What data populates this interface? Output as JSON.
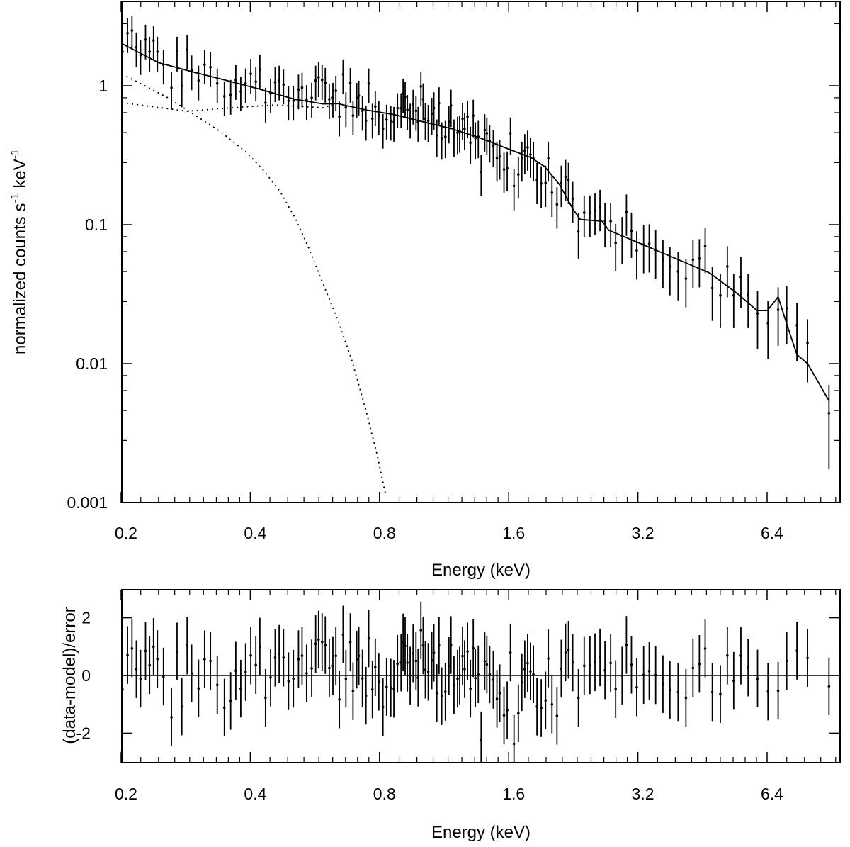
{
  "chart_data": [
    {
      "type": "scatter",
      "panel": "spectrum",
      "xscale": "log",
      "yscale": "log",
      "xlabel": "Energy (keV)",
      "ylabel": {
        "main": "normalized counts s",
        "sup1": "-1",
        "mid": " keV",
        "sup2": "-1"
      },
      "xlim": [
        0.2,
        9.5
      ],
      "ylim": [
        0.001,
        4.0
      ],
      "xticks": [
        0.2,
        0.4,
        0.8,
        1.6,
        3.2,
        6.4
      ],
      "xtick_labels": [
        "0.2",
        "0.4",
        "0.8",
        "1.6",
        "3.2",
        "6.4"
      ],
      "yticks": [
        0.001,
        0.01,
        0.1,
        1
      ],
      "ytick_labels": [
        "0.001",
        "0.01",
        "0.1",
        "1"
      ],
      "colors": {
        "data": "#000000",
        "model": "#000000",
        "components": "#000000"
      },
      "data_columns": [
        "energy_keV",
        "value",
        "relative_error"
      ],
      "data": [
        [
          0.2015,
          1.76,
          0.28
        ],
        [
          0.207,
          2.39,
          0.28
        ],
        [
          0.212,
          2.5,
          0.28
        ],
        [
          0.217,
          1.89,
          0.28
        ],
        [
          0.222,
          1.66,
          0.28
        ],
        [
          0.228,
          2.15,
          0.28
        ],
        [
          0.233,
          1.76,
          0.28
        ],
        [
          0.238,
          2.12,
          0.28
        ],
        [
          0.243,
          1.76,
          0.28
        ],
        [
          0.251,
          1.42,
          0.28
        ],
        [
          0.262,
          0.966,
          0.3
        ],
        [
          0.27,
          1.76,
          0.28
        ],
        [
          0.277,
          1.0,
          0.3
        ],
        [
          0.285,
          1.82,
          0.28
        ],
        [
          0.292,
          1.29,
          0.28
        ],
        [
          0.303,
          1.09,
          0.28
        ],
        [
          0.313,
          1.42,
          0.28
        ],
        [
          0.323,
          1.36,
          0.28
        ],
        [
          0.335,
          1.04,
          0.28
        ],
        [
          0.348,
          0.84,
          0.28
        ],
        [
          0.36,
          0.86,
          0.28
        ],
        [
          0.37,
          1.1,
          0.28
        ],
        [
          0.38,
          0.91,
          0.28
        ],
        [
          0.39,
          1.04,
          0.28
        ],
        [
          0.401,
          1.22,
          0.28
        ],
        [
          0.412,
          1.07,
          0.28
        ],
        [
          0.421,
          1.31,
          0.28
        ],
        [
          0.434,
          0.755,
          0.28
        ],
        [
          0.446,
          0.88,
          0.28
        ],
        [
          0.457,
          1.06,
          0.28
        ],
        [
          0.467,
          1.09,
          0.28
        ],
        [
          0.478,
          1.02,
          0.28
        ],
        [
          0.491,
          0.78,
          0.28
        ],
        [
          0.504,
          0.78,
          0.28
        ],
        [
          0.518,
          0.94,
          0.28
        ],
        [
          0.528,
          0.97,
          0.28
        ],
        [
          0.541,
          0.79,
          0.28
        ],
        [
          0.556,
          0.82,
          0.28
        ],
        [
          0.568,
          1.09,
          0.28
        ],
        [
          0.577,
          1.15,
          0.28
        ],
        [
          0.588,
          1.1,
          0.28
        ],
        [
          0.598,
          1.05,
          0.28
        ],
        [
          0.611,
          0.8,
          0.28
        ],
        [
          0.623,
          0.82,
          0.28
        ],
        [
          0.633,
          0.92,
          0.28
        ],
        [
          0.645,
          0.6,
          0.28
        ],
        [
          0.658,
          1.21,
          0.28
        ],
        [
          0.668,
          0.7,
          0.28
        ],
        [
          0.684,
          1.05,
          0.28
        ],
        [
          0.694,
          0.61,
          0.28
        ],
        [
          0.708,
          0.82,
          0.28
        ],
        [
          0.716,
          0.85,
          0.28
        ],
        [
          0.73,
          0.66,
          0.28
        ],
        [
          0.744,
          0.56,
          0.28
        ],
        [
          0.755,
          1.04,
          0.28
        ],
        [
          0.77,
          0.58,
          0.28
        ],
        [
          0.782,
          0.71,
          0.28
        ],
        [
          0.797,
          0.61,
          0.28
        ],
        [
          0.815,
          0.49,
          0.28
        ],
        [
          0.831,
          0.57,
          0.28
        ],
        [
          0.85,
          0.56,
          0.28
        ],
        [
          0.864,
          0.55,
          0.28
        ],
        [
          0.881,
          0.69,
          0.28
        ],
        [
          0.898,
          0.69,
          0.28
        ],
        [
          0.908,
          0.88,
          0.28
        ],
        [
          0.918,
          0.83,
          0.28
        ],
        [
          0.929,
          0.67,
          0.28
        ],
        [
          0.943,
          0.58,
          0.28
        ],
        [
          0.958,
          0.73,
          0.28
        ],
        [
          0.973,
          0.66,
          0.28
        ],
        [
          0.984,
          0.55,
          0.28
        ],
        [
          0.999,
          0.99,
          0.28
        ],
        [
          1.011,
          0.8,
          0.3
        ],
        [
          1.023,
          0.58,
          0.3
        ],
        [
          1.039,
          0.56,
          0.3
        ],
        [
          1.059,
          0.63,
          0.3
        ],
        [
          1.071,
          0.69,
          0.3
        ],
        [
          1.088,
          0.44,
          0.3
        ],
        [
          1.101,
          0.75,
          0.3
        ],
        [
          1.117,
          0.42,
          0.3
        ],
        [
          1.139,
          0.43,
          0.3
        ],
        [
          1.161,
          0.55,
          0.3
        ],
        [
          1.174,
          0.72,
          0.3
        ],
        [
          1.193,
          0.44,
          0.3
        ],
        [
          1.216,
          0.46,
          0.3
        ],
        [
          1.23,
          0.47,
          0.3
        ],
        [
          1.249,
          0.58,
          0.3
        ],
        [
          1.263,
          0.49,
          0.3
        ],
        [
          1.283,
          0.6,
          0.3
        ],
        [
          1.303,
          0.39,
          0.3
        ],
        [
          1.323,
          0.61,
          0.3
        ],
        [
          1.338,
          0.42,
          0.3
        ],
        [
          1.359,
          0.43,
          0.3
        ],
        [
          1.38,
          0.24,
          0.33
        ],
        [
          1.407,
          0.48,
          0.3
        ],
        [
          1.423,
          0.455,
          0.3
        ],
        [
          1.445,
          0.4,
          0.3
        ],
        [
          1.473,
          0.37,
          0.3
        ],
        [
          1.502,
          0.3,
          0.32
        ],
        [
          1.525,
          0.31,
          0.32
        ],
        [
          1.56,
          0.25,
          0.32
        ],
        [
          1.587,
          0.255,
          0.32
        ],
        [
          1.615,
          0.455,
          0.3
        ],
        [
          1.646,
          0.19,
          0.33
        ],
        [
          1.685,
          0.23,
          0.33
        ],
        [
          1.717,
          0.3,
          0.32
        ],
        [
          1.744,
          0.34,
          0.32
        ],
        [
          1.771,
          0.36,
          0.32
        ],
        [
          1.798,
          0.32,
          0.32
        ],
        [
          1.827,
          0.3,
          0.32
        ],
        [
          1.862,
          0.21,
          0.33
        ],
        [
          1.905,
          0.198,
          0.33
        ],
        [
          1.95,
          0.2,
          0.33
        ],
        [
          1.979,
          0.3,
          0.32
        ],
        [
          2.018,
          0.17,
          0.33
        ],
        [
          2.073,
          0.14,
          0.33
        ],
        [
          2.121,
          0.2,
          0.33
        ],
        [
          2.171,
          0.22,
          0.33
        ],
        [
          2.205,
          0.21,
          0.33
        ],
        [
          2.256,
          0.153,
          0.33
        ],
        [
          2.326,
          0.089,
          0.36
        ],
        [
          2.399,
          0.122,
          0.33
        ],
        [
          2.474,
          0.122,
          0.33
        ],
        [
          2.542,
          0.126,
          0.33
        ],
        [
          2.611,
          0.134,
          0.33
        ],
        [
          2.682,
          0.106,
          0.35
        ],
        [
          2.765,
          0.106,
          0.35
        ],
        [
          2.84,
          0.074,
          0.37
        ],
        [
          2.94,
          0.083,
          0.37
        ],
        [
          3.009,
          0.124,
          0.33
        ],
        [
          3.091,
          0.09,
          0.36
        ],
        [
          3.18,
          0.065,
          0.38
        ],
        [
          3.3,
          0.072,
          0.38
        ],
        [
          3.4,
          0.073,
          0.38
        ],
        [
          3.52,
          0.066,
          0.38
        ],
        [
          3.66,
          0.056,
          0.38
        ],
        [
          3.8,
          0.05,
          0.38
        ],
        [
          3.97,
          0.046,
          0.38
        ],
        [
          4.14,
          0.041,
          0.38
        ],
        [
          4.3,
          0.056,
          0.38
        ],
        [
          4.45,
          0.057,
          0.38
        ],
        [
          4.59,
          0.07,
          0.36
        ],
        [
          4.77,
          0.035,
          0.42
        ],
        [
          4.98,
          0.031,
          0.42
        ],
        [
          5.17,
          0.05,
          0.4
        ],
        [
          5.35,
          0.031,
          0.42
        ],
        [
          5.56,
          0.042,
          0.4
        ],
        [
          5.78,
          0.031,
          0.42
        ],
        [
          6.08,
          0.023,
          0.45
        ],
        [
          6.43,
          0.0195,
          0.45
        ],
        [
          6.79,
          0.0244,
          0.45
        ],
        [
          7.11,
          0.025,
          0.45
        ],
        [
          7.51,
          0.0189,
          0.45
        ],
        [
          7.95,
          0.0141,
          0.48
        ],
        [
          8.92,
          0.0044,
          0.6
        ]
      ],
      "series": [
        {
          "name": "total model",
          "style": "solid",
          "points": [
            [
              0.2015,
              2.0
            ],
            [
              0.244,
              1.47
            ],
            [
              0.296,
              1.25
            ],
            [
              0.345,
              1.11
            ],
            [
              0.418,
              0.95
            ],
            [
              0.507,
              0.8
            ],
            [
              0.591,
              0.74
            ],
            [
              0.638,
              0.745
            ],
            [
              0.744,
              0.67
            ],
            [
              0.867,
              0.62
            ],
            [
              1.011,
              0.55
            ],
            [
              1.18,
              0.49
            ],
            [
              1.375,
              0.42
            ],
            [
              1.6,
              0.35
            ],
            [
              1.8,
              0.305
            ],
            [
              1.94,
              0.262
            ],
            [
              2.1,
              0.195
            ],
            [
              2.26,
              0.129
            ],
            [
              2.35,
              0.109
            ],
            [
              2.64,
              0.106
            ],
            [
              2.74,
              0.091
            ],
            [
              3.2,
              0.0745
            ],
            [
              4.03,
              0.055
            ],
            [
              4.7,
              0.045
            ],
            [
              5.48,
              0.0316
            ],
            [
              6.06,
              0.0241
            ],
            [
              6.41,
              0.0241
            ],
            [
              6.79,
              0.0302
            ],
            [
              7.11,
              0.0193
            ],
            [
              7.51,
              0.0116
            ],
            [
              7.95,
              0.01
            ],
            [
              8.92,
              0.0054
            ]
          ]
        },
        {
          "name": "soft component",
          "style": "dotted",
          "points": [
            [
              0.2015,
              1.21
            ],
            [
              0.257,
              0.82
            ],
            [
              0.288,
              0.655
            ],
            [
              0.34,
              0.47
            ],
            [
              0.392,
              0.331
            ],
            [
              0.43,
              0.245
            ],
            [
              0.469,
              0.174
            ],
            [
              0.51,
              0.11
            ],
            [
              0.547,
              0.068
            ],
            [
              0.59,
              0.038
            ],
            [
              0.638,
              0.021
            ],
            [
              0.69,
              0.0105
            ],
            [
              0.744,
              0.0046
            ],
            [
              0.79,
              0.0022
            ],
            [
              0.828,
              0.00111
            ]
          ]
        },
        {
          "name": "hard component",
          "style": "dotted",
          "points": [
            [
              0.2015,
              0.755
            ],
            [
              0.285,
              0.655
            ],
            [
              0.345,
              0.687
            ],
            [
              0.457,
              0.728
            ],
            [
              0.591,
              0.695
            ],
            [
              0.638,
              0.745
            ]
          ]
        }
      ]
    },
    {
      "type": "scatter",
      "panel": "residuals",
      "xscale": "log",
      "yscale": "linear",
      "xlabel": "Energy (keV)",
      "ylabel": "(data-model)/error",
      "xlim": [
        0.2,
        9.5
      ],
      "ylim": [
        -3,
        3
      ],
      "xticks": [
        0.2,
        0.4,
        0.8,
        1.6,
        3.2,
        6.4
      ],
      "xtick_labels": [
        "0.2",
        "0.4",
        "0.8",
        "1.6",
        "3.2",
        "6.4"
      ],
      "yticks": [
        -2,
        0,
        2
      ],
      "ytick_labels": [
        "-2",
        "0",
        "2"
      ],
      "reference_line": 0,
      "residuals_from": "spectrum data and total model"
    }
  ]
}
